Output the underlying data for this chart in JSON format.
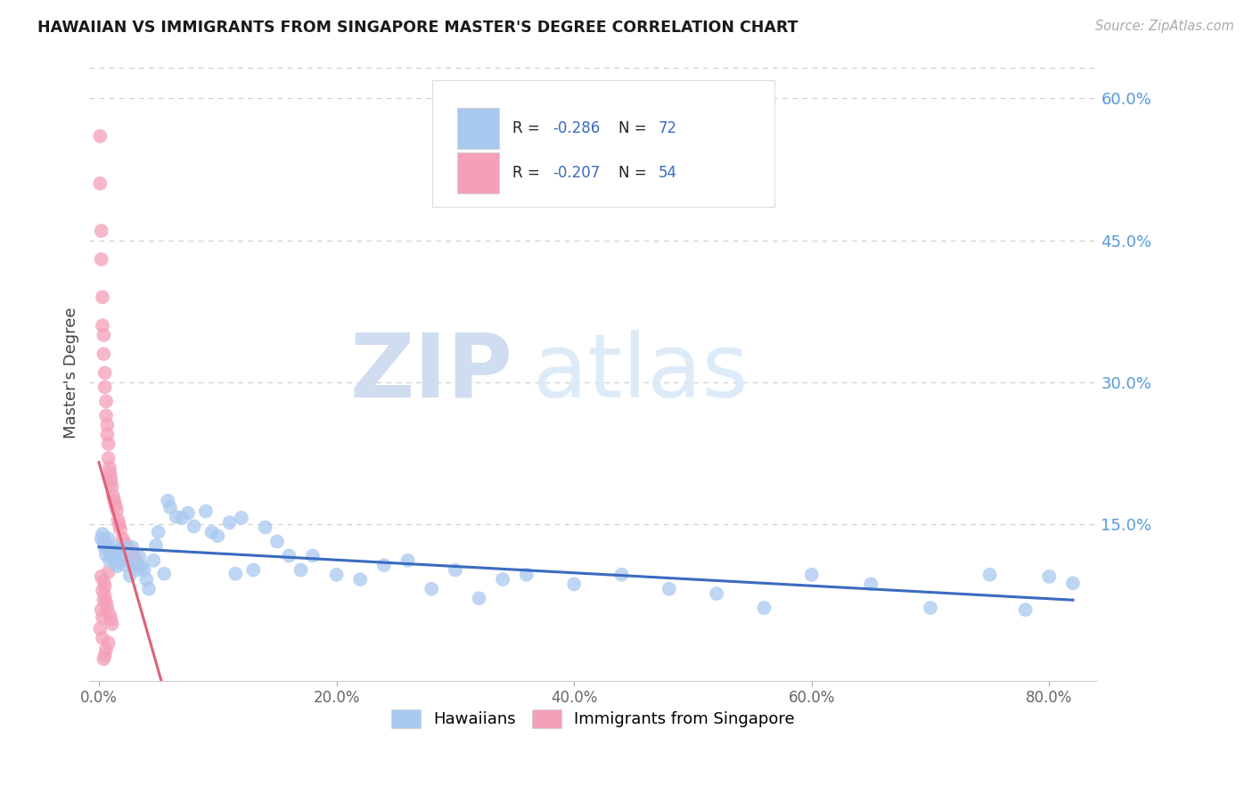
{
  "title": "HAWAIIAN VS IMMIGRANTS FROM SINGAPORE MASTER'S DEGREE CORRELATION CHART",
  "source": "Source: ZipAtlas.com",
  "ylabel": "Master's Degree",
  "xlabel_ticks": [
    "0.0%",
    "20.0%",
    "40.0%",
    "60.0%",
    "80.0%"
  ],
  "xlabel_vals": [
    0.0,
    0.2,
    0.4,
    0.6,
    0.8
  ],
  "right_yticks": [
    0.0,
    0.15,
    0.3,
    0.45,
    0.6
  ],
  "right_ytick_labels": [
    "",
    "15.0%",
    "30.0%",
    "45.0%",
    "60.0%"
  ],
  "xlim": [
    -0.008,
    0.84
  ],
  "ylim": [
    -0.015,
    0.635
  ],
  "hawaiians_color": "#A8C8F0",
  "singapore_color": "#F4A0B8",
  "trend_hawaii_color": "#3A6BC0",
  "trend_singapore_color": "#E0607A",
  "watermark_zip": "ZIP",
  "watermark_atlas": "atlas",
  "hawaiians_x": [
    0.002,
    0.003,
    0.004,
    0.005,
    0.005,
    0.006,
    0.007,
    0.008,
    0.009,
    0.01,
    0.011,
    0.012,
    0.013,
    0.014,
    0.015,
    0.016,
    0.018,
    0.02,
    0.022,
    0.024,
    0.026,
    0.028,
    0.03,
    0.032,
    0.034,
    0.036,
    0.038,
    0.04,
    0.042,
    0.046,
    0.05,
    0.055,
    0.06,
    0.065,
    0.07,
    0.075,
    0.08,
    0.09,
    0.095,
    0.1,
    0.11,
    0.115,
    0.12,
    0.13,
    0.14,
    0.15,
    0.16,
    0.17,
    0.18,
    0.2,
    0.22,
    0.24,
    0.26,
    0.28,
    0.3,
    0.32,
    0.34,
    0.36,
    0.4,
    0.44,
    0.48,
    0.52,
    0.56,
    0.6,
    0.65,
    0.7,
    0.75,
    0.78,
    0.8,
    0.82,
    0.048,
    0.058
  ],
  "hawaiians_y": [
    0.135,
    0.14,
    0.13,
    0.125,
    0.132,
    0.118,
    0.128,
    0.135,
    0.112,
    0.122,
    0.116,
    0.126,
    0.115,
    0.11,
    0.106,
    0.122,
    0.115,
    0.126,
    0.107,
    0.112,
    0.096,
    0.126,
    0.107,
    0.102,
    0.116,
    0.106,
    0.102,
    0.092,
    0.082,
    0.112,
    0.142,
    0.098,
    0.168,
    0.158,
    0.157,
    0.162,
    0.148,
    0.164,
    0.142,
    0.138,
    0.152,
    0.098,
    0.157,
    0.102,
    0.147,
    0.132,
    0.117,
    0.102,
    0.117,
    0.097,
    0.092,
    0.107,
    0.112,
    0.082,
    0.102,
    0.072,
    0.092,
    0.097,
    0.087,
    0.097,
    0.082,
    0.077,
    0.062,
    0.097,
    0.087,
    0.062,
    0.097,
    0.06,
    0.095,
    0.088,
    0.128,
    0.175
  ],
  "singapore_x": [
    0.001,
    0.001,
    0.002,
    0.002,
    0.003,
    0.003,
    0.004,
    0.004,
    0.005,
    0.005,
    0.006,
    0.006,
    0.007,
    0.007,
    0.008,
    0.008,
    0.009,
    0.009,
    0.01,
    0.01,
    0.011,
    0.012,
    0.013,
    0.014,
    0.015,
    0.016,
    0.017,
    0.018,
    0.02,
    0.022,
    0.025,
    0.028,
    0.03,
    0.032,
    0.008,
    0.004,
    0.003,
    0.005,
    0.006,
    0.007,
    0.009,
    0.01,
    0.011,
    0.008,
    0.006,
    0.005,
    0.004,
    0.003,
    0.002,
    0.002,
    0.001,
    0.003,
    0.004,
    0.005
  ],
  "singapore_y": [
    0.56,
    0.51,
    0.46,
    0.43,
    0.39,
    0.36,
    0.35,
    0.33,
    0.31,
    0.295,
    0.28,
    0.265,
    0.255,
    0.245,
    0.235,
    0.22,
    0.21,
    0.205,
    0.2,
    0.195,
    0.19,
    0.18,
    0.175,
    0.17,
    0.165,
    0.155,
    0.15,
    0.145,
    0.135,
    0.13,
    0.125,
    0.12,
    0.115,
    0.11,
    0.1,
    0.09,
    0.08,
    0.075,
    0.068,
    0.062,
    0.055,
    0.05,
    0.045,
    0.025,
    0.018,
    0.012,
    0.008,
    0.03,
    0.095,
    0.06,
    0.04,
    0.052,
    0.07,
    0.085
  ],
  "legend_R_label_color": "#333333",
  "legend_N_label_color": "#333333",
  "legend_value_color": "#3A6BC0",
  "background_color": "#FFFFFF",
  "grid_color": "#CCCCCC",
  "hawaii_trend_x_start": 0.0,
  "hawaii_trend_x_end": 0.82,
  "singapore_trend_x_start": 0.0,
  "singapore_trend_x_end": 0.16
}
